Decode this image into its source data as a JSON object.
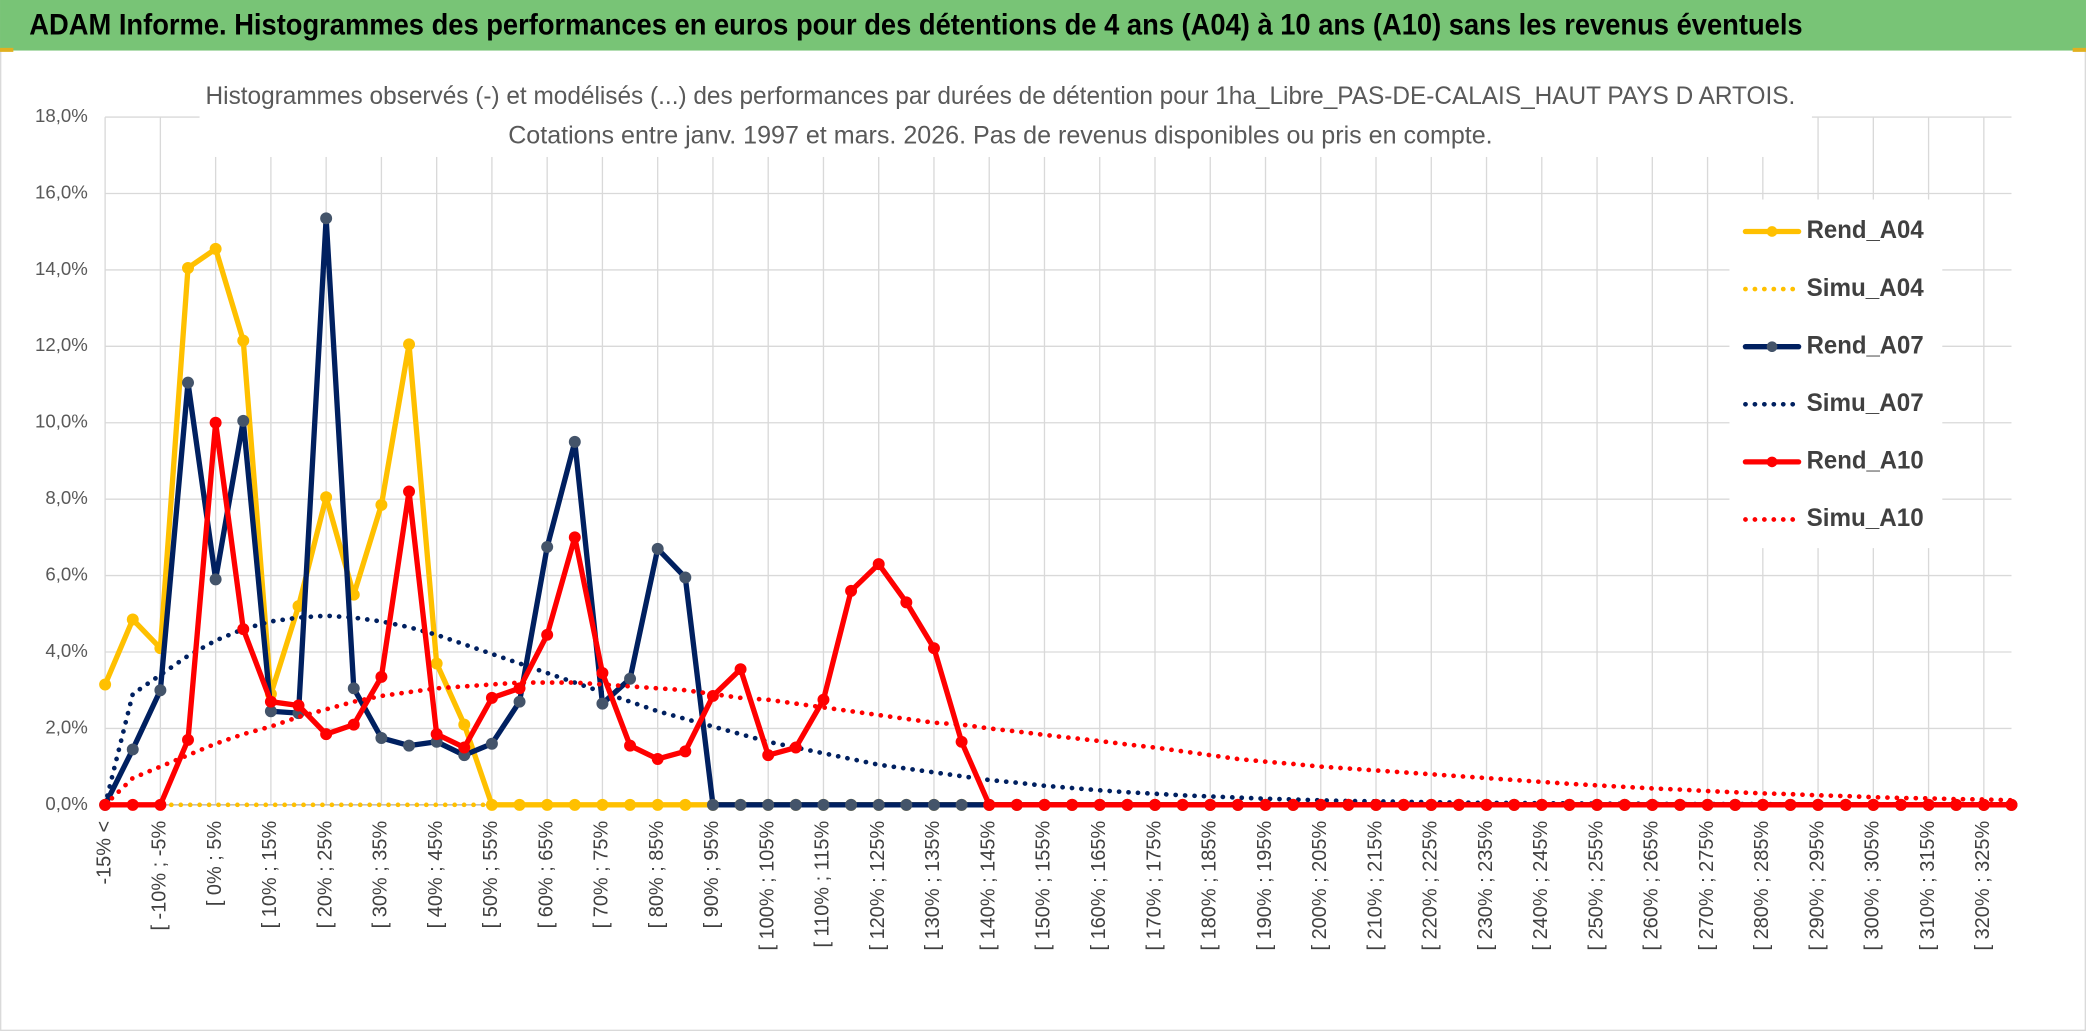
{
  "chart_data": {
    "type": "line",
    "title": "ADAM Informe. Histogrammes des performances en euros pour des détentions de 4 ans (A04) à 10 ans (A10) sans les revenus éventuels",
    "subtitle": [
      "Histogrammes observés (-) et modélisés (...) des performances par durées de détention pour 1ha_Libre_PAS-DE-CALAIS_HAUT PAYS D ARTOIS.",
      "Cotations entre janv. 1997 et mars. 2026. Pas de revenus disponibles ou pris en compte."
    ],
    "categories": [
      "-15% <",
      null,
      "[ -10% ; -5%",
      null,
      "[ 0% ; 5%",
      null,
      "[ 10% ; 15%",
      null,
      "[ 20% ; 25%",
      null,
      "[ 30% ; 35%",
      null,
      "[ 40% ; 45%",
      null,
      "[ 50% ; 55%",
      null,
      "[ 60% ; 65%",
      null,
      "[ 70% ; 75%",
      null,
      "[ 80% ; 85%",
      null,
      "[ 90% ; 95%",
      null,
      "[ 100% ; 105%",
      null,
      "[ 110% ; 115%",
      null,
      "[ 120% ; 125%",
      null,
      "[ 130% ; 135%",
      null,
      "[ 140% ; 145%",
      null,
      "[ 150% ; 155%",
      null,
      "[ 160% ; 165%",
      null,
      "[ 170% ; 175%",
      null,
      "[ 180% ; 185%",
      null,
      "[ 190% ; 195%",
      null,
      "[ 200% ; 205%",
      null,
      "[ 210% ; 215%",
      null,
      "[ 220% ; 225%",
      null,
      "[ 230% ; 235%",
      null,
      "[ 240% ; 245%",
      null,
      "[ 250% ; 255%",
      null,
      "[ 260% ; 265%",
      null,
      "[ 270% ; 275%",
      null,
      "[ 280% ; 285%",
      null,
      "[ 290% ; 295%",
      null,
      "[ 300% ; 305%",
      null,
      "[ 310% ; 315%",
      null,
      "[ 320% ; 325%",
      null
    ],
    "ylim": [
      0,
      18
    ],
    "yticks": [
      {
        "value": 0,
        "label": "0,0%"
      },
      {
        "value": 2,
        "label": "2,0%"
      },
      {
        "value": 4,
        "label": "4,0%"
      },
      {
        "value": 6,
        "label": "6,0%"
      },
      {
        "value": 8,
        "label": "8,0%"
      },
      {
        "value": 10,
        "label": "10,0%"
      },
      {
        "value": 12,
        "label": "12,0%"
      },
      {
        "value": 14,
        "label": "14,0%"
      },
      {
        "value": 16,
        "label": "16,0%"
      },
      {
        "value": 18,
        "label": "18,0%"
      }
    ],
    "grid": true,
    "legend": "right",
    "series": [
      {
        "name": "Rend_A04",
        "color": "#ffc000",
        "style": "solid",
        "markers": true,
        "values": [
          3.15,
          4.85,
          4.1,
          14.05,
          14.55,
          12.15,
          2.9,
          5.2,
          8.05,
          5.5,
          7.85,
          12.05,
          3.7,
          2.1,
          0,
          0,
          0,
          0,
          0,
          0,
          0,
          0,
          0,
          0,
          0,
          0,
          0,
          0,
          0,
          0,
          0,
          0,
          0,
          0,
          0,
          0,
          0,
          0,
          0,
          0,
          0,
          0,
          0,
          0,
          0,
          0,
          0,
          0,
          0,
          0,
          0,
          0,
          0,
          0,
          0,
          0,
          0,
          0,
          0,
          0,
          0,
          0,
          0,
          0,
          0,
          0,
          0,
          0,
          0,
          0
        ]
      },
      {
        "name": "Simu_A04",
        "color": "#ffc000",
        "style": "dotted",
        "markers": false,
        "values": [
          0,
          0,
          0,
          0,
          0,
          0,
          0,
          0,
          0,
          0,
          0,
          0,
          0,
          0,
          0,
          0,
          0,
          0,
          0,
          0,
          0,
          0,
          0,
          0,
          0,
          0,
          0,
          0,
          0,
          0,
          0,
          0,
          0,
          0,
          0,
          0,
          0,
          0,
          0,
          0,
          0,
          0,
          0,
          0,
          0,
          0,
          0,
          0,
          0,
          0,
          0,
          0,
          0,
          0,
          0,
          0,
          0,
          0,
          0,
          0,
          0,
          0,
          0,
          0,
          0,
          0,
          0,
          0,
          0,
          0
        ]
      },
      {
        "name": "Rend_A07",
        "color": "#002060",
        "style": "solid",
        "markers": true,
        "values": [
          0,
          1.45,
          3.0,
          11.05,
          5.9,
          10.05,
          2.45,
          2.4,
          15.35,
          3.05,
          1.75,
          1.55,
          1.65,
          1.3,
          1.6,
          2.7,
          6.75,
          9.5,
          2.65,
          3.3,
          6.7,
          5.95,
          0,
          0,
          0,
          0,
          0,
          0,
          0,
          0,
          0,
          0,
          0,
          0,
          0,
          0,
          0,
          0,
          0,
          0,
          0,
          0,
          0,
          0,
          0,
          0,
          0,
          0,
          0,
          0,
          0,
          0,
          0,
          0,
          0,
          0,
          0,
          0,
          0,
          0,
          0,
          0,
          0,
          0,
          0,
          0,
          0,
          0,
          0,
          0
        ]
      },
      {
        "name": "Simu_A07",
        "color": "#002060",
        "style": "dotted",
        "markers": false,
        "values": [
          0,
          2.9,
          3.4,
          3.9,
          4.3,
          4.6,
          4.8,
          4.9,
          4.95,
          4.9,
          4.8,
          4.65,
          4.45,
          4.2,
          3.95,
          3.7,
          3.45,
          3.2,
          2.95,
          2.7,
          2.45,
          2.25,
          2.05,
          1.85,
          1.65,
          1.5,
          1.35,
          1.2,
          1.05,
          0.95,
          0.85,
          0.75,
          0.65,
          0.58,
          0.5,
          0.44,
          0.38,
          0.33,
          0.29,
          0.25,
          0.22,
          0.19,
          0.16,
          0.14,
          0.12,
          0.1,
          0.09,
          0.08,
          0.07,
          0.06,
          0.05,
          0.05,
          0.04,
          0.04,
          0.03,
          0.03,
          0.03,
          0.02,
          0.02,
          0.02,
          0.02,
          0.01,
          0.01,
          0.01,
          0.01,
          0.01,
          0.01,
          0.01,
          0.01,
          0.01
        ]
      },
      {
        "name": "Rend_A10",
        "color": "#ff0000",
        "style": "solid",
        "markers": true,
        "values": [
          0,
          0,
          0,
          1.7,
          10.0,
          4.6,
          2.7,
          2.6,
          1.85,
          2.1,
          3.35,
          8.2,
          1.85,
          1.5,
          2.8,
          3.05,
          4.45,
          7.0,
          3.45,
          1.55,
          1.2,
          1.4,
          2.85,
          3.55,
          1.3,
          1.5,
          2.75,
          5.6,
          6.3,
          5.3,
          4.1,
          1.65,
          0,
          0,
          0,
          0,
          0,
          0,
          0,
          0,
          0,
          0,
          0,
          0,
          0,
          0,
          0,
          0,
          0,
          0,
          0,
          0,
          0,
          0,
          0,
          0,
          0,
          0,
          0,
          0,
          0,
          0,
          0,
          0,
          0,
          0,
          0,
          0,
          0,
          0
        ]
      },
      {
        "name": "Simu_A10",
        "color": "#ff0000",
        "style": "dotted",
        "markers": false,
        "values": [
          0,
          0.7,
          1.0,
          1.3,
          1.6,
          1.85,
          2.05,
          2.3,
          2.5,
          2.7,
          2.85,
          2.95,
          3.05,
          3.1,
          3.15,
          3.2,
          3.2,
          3.2,
          3.15,
          3.1,
          3.05,
          3.0,
          2.9,
          2.8,
          2.75,
          2.65,
          2.55,
          2.45,
          2.35,
          2.25,
          2.15,
          2.1,
          2.0,
          1.92,
          1.83,
          1.75,
          1.67,
          1.58,
          1.5,
          1.4,
          1.3,
          1.2,
          1.13,
          1.07,
          1.0,
          0.95,
          0.9,
          0.85,
          0.8,
          0.75,
          0.7,
          0.65,
          0.6,
          0.55,
          0.51,
          0.47,
          0.43,
          0.4,
          0.36,
          0.33,
          0.3,
          0.28,
          0.25,
          0.23,
          0.2,
          0.18,
          0.17,
          0.15,
          0.14,
          0.12
        ]
      }
    ]
  }
}
